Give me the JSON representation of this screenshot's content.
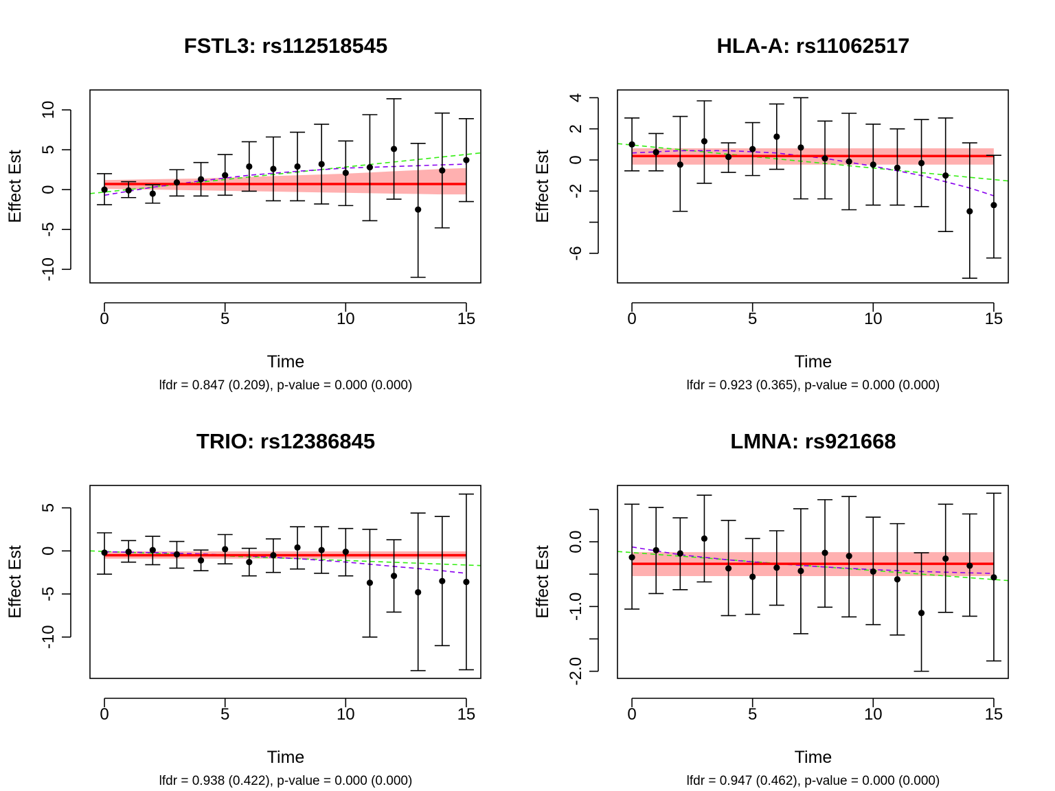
{
  "chart_data": [
    {
      "type": "scatter",
      "title": "FSTL3: rs112518545",
      "xlabel": "Time",
      "ylabel": "Effect Est",
      "subtitle": "lfdr = 0.847 (0.209), p-value = 0.000 (0.000)",
      "xlim": [
        -0.6,
        15.6
      ],
      "ylim": [
        -11.7,
        12.5
      ],
      "xticks": [
        0,
        5,
        10,
        15
      ],
      "yticks": [
        -10,
        -5,
        0,
        5,
        10
      ],
      "x": [
        0,
        1,
        2,
        3,
        4,
        5,
        6,
        7,
        8,
        9,
        10,
        11,
        12,
        13,
        14,
        15
      ],
      "estimates": [
        0.0,
        -0.1,
        -0.5,
        0.9,
        1.3,
        1.8,
        2.9,
        2.6,
        2.9,
        3.2,
        2.1,
        2.8,
        5.1,
        -2.5,
        2.4,
        3.7
      ],
      "ci_lower": [
        -1.9,
        -1.0,
        -1.7,
        -0.8,
        -0.8,
        -0.7,
        -0.2,
        -1.4,
        -1.4,
        -1.8,
        -2.0,
        -3.9,
        -1.2,
        -11.0,
        -4.8,
        -1.5
      ],
      "ci_upper": [
        2.0,
        1.0,
        0.6,
        2.5,
        3.4,
        4.4,
        6.0,
        6.6,
        7.2,
        8.2,
        6.1,
        9.4,
        11.4,
        5.8,
        9.6,
        8.9
      ],
      "constant_fit": {
        "value": 0.7,
        "band_lower": [
          0.1,
          0.05,
          0.0,
          -0.05,
          -0.1,
          -0.15,
          -0.2,
          -0.25,
          -0.3,
          -0.35,
          -0.4,
          -0.45,
          -0.5,
          -0.55,
          -0.6,
          -0.6
        ],
        "band_upper": [
          1.2,
          1.25,
          1.3,
          1.35,
          1.4,
          1.5,
          1.6,
          1.7,
          1.8,
          1.9,
          2.0,
          2.15,
          2.3,
          2.45,
          2.6,
          2.7
        ]
      },
      "quadratic_fit": {
        "x0": -0.6,
        "x1": 15,
        "y0": -0.8,
        "y_end": 3.2,
        "curve": [
          [
            0,
            -0.7
          ],
          [
            2,
            0.3
          ],
          [
            4,
            1.1
          ],
          [
            6,
            1.8
          ],
          [
            8,
            2.3
          ],
          [
            10,
            2.7
          ],
          [
            12,
            2.9
          ],
          [
            14,
            3.1
          ],
          [
            15,
            3.2
          ]
        ]
      },
      "linear_fit": {
        "x0": -0.6,
        "y0": -0.5,
        "x1": 15.6,
        "y1": 4.6
      }
    },
    {
      "type": "scatter",
      "title": "HLA-A: rs11062517",
      "xlabel": "Time",
      "ylabel": "Effect Est",
      "subtitle": "lfdr = 0.923 (0.365), p-value = 0.000 (0.000)",
      "xlim": [
        -0.6,
        15.6
      ],
      "ylim": [
        -7.9,
        4.5
      ],
      "xticks": [
        0,
        5,
        10,
        15
      ],
      "yticks": [
        -6,
        -4,
        -2,
        0,
        2,
        4
      ],
      "ytick_labels": [
        "-6",
        "",
        "-2",
        "0",
        "2",
        "4"
      ],
      "x": [
        0,
        1,
        2,
        3,
        4,
        5,
        6,
        7,
        8,
        9,
        10,
        11,
        12,
        13,
        14,
        15
      ],
      "estimates": [
        1.0,
        0.5,
        -0.3,
        1.2,
        0.2,
        0.7,
        1.5,
        0.8,
        0.1,
        -0.1,
        -0.3,
        -0.5,
        -0.2,
        -1.0,
        -3.3,
        -2.9
      ],
      "ci_lower": [
        -0.7,
        -0.7,
        -3.3,
        -1.5,
        -0.8,
        -1.0,
        -0.6,
        -2.5,
        -2.5,
        -3.2,
        -2.9,
        -2.9,
        -3.0,
        -4.6,
        -7.6,
        -6.3
      ],
      "ci_upper": [
        2.7,
        1.7,
        2.8,
        3.8,
        1.1,
        2.4,
        3.6,
        4.0,
        2.5,
        3.0,
        2.3,
        2.0,
        2.6,
        2.7,
        1.1,
        0.3
      ],
      "constant_fit": {
        "value": 0.25,
        "band_lower": [
          -0.3,
          -0.3,
          -0.3,
          -0.3,
          -0.3,
          -0.3,
          -0.3,
          -0.3,
          -0.3,
          -0.3,
          -0.3,
          -0.3,
          -0.3,
          -0.3,
          -0.3,
          -0.3
        ],
        "band_upper": [
          0.75,
          0.75,
          0.75,
          0.75,
          0.75,
          0.75,
          0.75,
          0.75,
          0.75,
          0.75,
          0.75,
          0.75,
          0.75,
          0.75,
          0.75,
          0.75
        ]
      },
      "quadratic_fit": {
        "curve": [
          [
            0,
            0.45
          ],
          [
            2,
            0.6
          ],
          [
            4,
            0.6
          ],
          [
            6,
            0.45
          ],
          [
            8,
            0.1
          ],
          [
            10,
            -0.4
          ],
          [
            12,
            -1.0
          ],
          [
            14,
            -1.8
          ],
          [
            15,
            -2.3
          ]
        ]
      },
      "linear_fit": {
        "x0": -0.6,
        "y0": 1.05,
        "x1": 15.6,
        "y1": -1.35
      }
    },
    {
      "type": "scatter",
      "title": "TRIO: rs12386845",
      "xlabel": "Time",
      "ylabel": "Effect Est",
      "subtitle": "lfdr = 0.938 (0.422), p-value = 0.000 (0.000)",
      "xlim": [
        -0.6,
        15.6
      ],
      "ylim": [
        -14.8,
        7.6
      ],
      "xticks": [
        0,
        5,
        10,
        15
      ],
      "yticks": [
        -10,
        -5,
        0,
        5
      ],
      "x": [
        0,
        1,
        2,
        3,
        4,
        5,
        6,
        7,
        8,
        9,
        10,
        11,
        12,
        13,
        14,
        15
      ],
      "estimates": [
        -0.2,
        -0.1,
        0.1,
        -0.4,
        -1.1,
        0.2,
        -1.3,
        -0.5,
        0.4,
        0.1,
        -0.1,
        -3.7,
        -2.9,
        -4.8,
        -3.5,
        -3.6
      ],
      "ci_lower": [
        -2.7,
        -1.3,
        -1.6,
        -2.0,
        -2.3,
        -1.5,
        -2.9,
        -2.5,
        -2.1,
        -2.6,
        -2.9,
        -10.0,
        -7.1,
        -13.9,
        -11.0,
        -13.8
      ],
      "ci_upper": [
        2.1,
        1.2,
        1.7,
        1.1,
        0.1,
        1.9,
        0.3,
        1.4,
        2.8,
        2.8,
        2.6,
        2.5,
        1.3,
        4.4,
        4.0,
        6.6
      ],
      "constant_fit": {
        "value": -0.5,
        "band_lower": [
          -0.9,
          -0.9,
          -0.9,
          -0.9,
          -0.9,
          -0.9,
          -0.9,
          -0.9,
          -0.9,
          -0.9,
          -0.9,
          -0.9,
          -0.9,
          -0.9,
          -0.9,
          -0.9
        ],
        "band_upper": [
          -0.05,
          -0.05,
          -0.05,
          -0.05,
          -0.05,
          -0.05,
          -0.05,
          -0.05,
          -0.05,
          -0.05,
          -0.05,
          -0.05,
          -0.05,
          -0.05,
          -0.05,
          -0.05
        ]
      },
      "quadratic_fit": {
        "curve": [
          [
            0,
            -0.1
          ],
          [
            2,
            -0.2
          ],
          [
            4,
            -0.35
          ],
          [
            6,
            -0.6
          ],
          [
            8,
            -0.9
          ],
          [
            10,
            -1.3
          ],
          [
            12,
            -1.8
          ],
          [
            14,
            -2.3
          ],
          [
            15,
            -2.6
          ]
        ]
      },
      "linear_fit": {
        "x0": -0.6,
        "y0": 0.0,
        "x1": 15.6,
        "y1": -1.7
      }
    },
    {
      "type": "scatter",
      "title": "LMNA: rs921668",
      "xlabel": "Time",
      "ylabel": "Effect Est",
      "subtitle": "lfdr = 0.947 (0.462), p-value = 0.000 (0.000)",
      "xlim": [
        -0.6,
        15.6
      ],
      "ylim": [
        -2.11,
        0.87
      ],
      "xticks": [
        0,
        5,
        10,
        15
      ],
      "yticks": [
        -2.0,
        -1.5,
        -1.0,
        -0.5,
        0.0,
        0.5
      ],
      "ytick_labels": [
        "-2.0",
        "",
        "-1.0",
        "",
        "0.0",
        ""
      ],
      "x": [
        0,
        1,
        2,
        3,
        4,
        5,
        6,
        7,
        8,
        9,
        10,
        11,
        12,
        13,
        14,
        15
      ],
      "estimates": [
        -0.24,
        -0.13,
        -0.18,
        0.05,
        -0.41,
        -0.54,
        -0.4,
        -0.45,
        -0.17,
        -0.22,
        -0.46,
        -0.58,
        -1.1,
        -0.26,
        -0.37,
        -0.55
      ],
      "ci_lower": [
        -1.04,
        -0.8,
        -0.74,
        -0.62,
        -1.14,
        -1.12,
        -0.98,
        -1.42,
        -1.01,
        -1.16,
        -1.28,
        -1.44,
        -2.0,
        -1.09,
        -1.15,
        -1.84
      ],
      "ci_upper": [
        0.58,
        0.53,
        0.37,
        0.72,
        0.33,
        0.05,
        0.17,
        0.51,
        0.65,
        0.7,
        0.38,
        0.28,
        -0.17,
        0.58,
        0.43,
        0.75
      ],
      "constant_fit": {
        "value": -0.34,
        "band_lower": [
          -0.53,
          -0.53,
          -0.53,
          -0.53,
          -0.53,
          -0.53,
          -0.53,
          -0.53,
          -0.53,
          -0.53,
          -0.53,
          -0.53,
          -0.53,
          -0.53,
          -0.53,
          -0.53
        ],
        "band_upper": [
          -0.16,
          -0.16,
          -0.16,
          -0.16,
          -0.16,
          -0.16,
          -0.16,
          -0.16,
          -0.16,
          -0.16,
          -0.16,
          -0.16,
          -0.16,
          -0.16,
          -0.16,
          -0.16
        ]
      },
      "quadratic_fit": {
        "curve": [
          [
            0,
            -0.08
          ],
          [
            2,
            -0.2
          ],
          [
            4,
            -0.28
          ],
          [
            6,
            -0.34
          ],
          [
            8,
            -0.39
          ],
          [
            10,
            -0.43
          ],
          [
            12,
            -0.46
          ],
          [
            14,
            -0.48
          ],
          [
            15,
            -0.49
          ]
        ]
      },
      "linear_fit": {
        "x0": -0.6,
        "y0": -0.15,
        "x1": 15.6,
        "y1": -0.6
      }
    }
  ],
  "colors": {
    "axis": "#000000",
    "point": "#000000",
    "constant_fit_line": "#ff0000",
    "constant_fit_band": "#ffb0b0",
    "quadratic_fit_line": "#8800ee",
    "linear_fit_line": "#33ee11"
  }
}
